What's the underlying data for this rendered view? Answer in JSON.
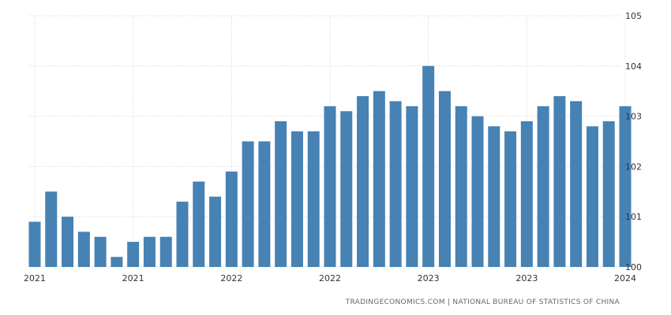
{
  "chart_data": {
    "type": "bar",
    "title": "",
    "xlabel": "",
    "ylabel": "",
    "categories": [
      "Jan 2021",
      "Feb 2021",
      "Mar 2021",
      "Apr 2021",
      "May 2021",
      "Jun 2021",
      "Jul 2021",
      "Aug 2021",
      "Sep 2021",
      "Oct 2021",
      "Nov 2021",
      "Dec 2021",
      "Jan 2022",
      "Feb 2022",
      "Mar 2022",
      "Apr 2022",
      "May 2022",
      "Jun 2022",
      "Jul 2022",
      "Aug 2022",
      "Sep 2022",
      "Oct 2022",
      "Nov 2022",
      "Dec 2022",
      "Jan 2023",
      "Feb 2023",
      "Mar 2023",
      "Apr 2023",
      "May 2023",
      "Jun 2023",
      "Jul 2023",
      "Aug 2023",
      "Sep 2023",
      "Oct 2023",
      "Nov 2023",
      "Dec 2023",
      "Jan 2024"
    ],
    "values": [
      100.9,
      101.5,
      101.0,
      100.7,
      100.6,
      100.2,
      100.5,
      100.6,
      100.6,
      101.3,
      101.7,
      101.4,
      101.9,
      102.5,
      102.5,
      102.9,
      102.7,
      102.7,
      103.2,
      103.1,
      103.4,
      103.5,
      103.3,
      103.2,
      104.0,
      103.5,
      103.2,
      103.0,
      102.8,
      102.7,
      102.9,
      103.2,
      103.4,
      103.3,
      102.8,
      102.9,
      103.2
    ],
    "ylim": [
      100,
      105
    ],
    "yticks": [
      "100",
      "101",
      "102",
      "103",
      "104",
      "105"
    ],
    "xtick_labels": [
      {
        "label": "2021",
        "index": 0
      },
      {
        "label": "2021",
        "index": 6
      },
      {
        "label": "2022",
        "index": 12
      },
      {
        "label": "2022",
        "index": 18
      },
      {
        "label": "2023",
        "index": 24
      },
      {
        "label": "2023",
        "index": 30
      },
      {
        "label": "2024",
        "index": 36
      }
    ],
    "y_axis_position": "right",
    "grid": true,
    "bar_color": "#4682b4",
    "grid_color": "#d0d0d0"
  },
  "source": "TRADINGECONOMICS.COM  |  NATIONAL BUREAU OF STATISTICS OF CHINA"
}
